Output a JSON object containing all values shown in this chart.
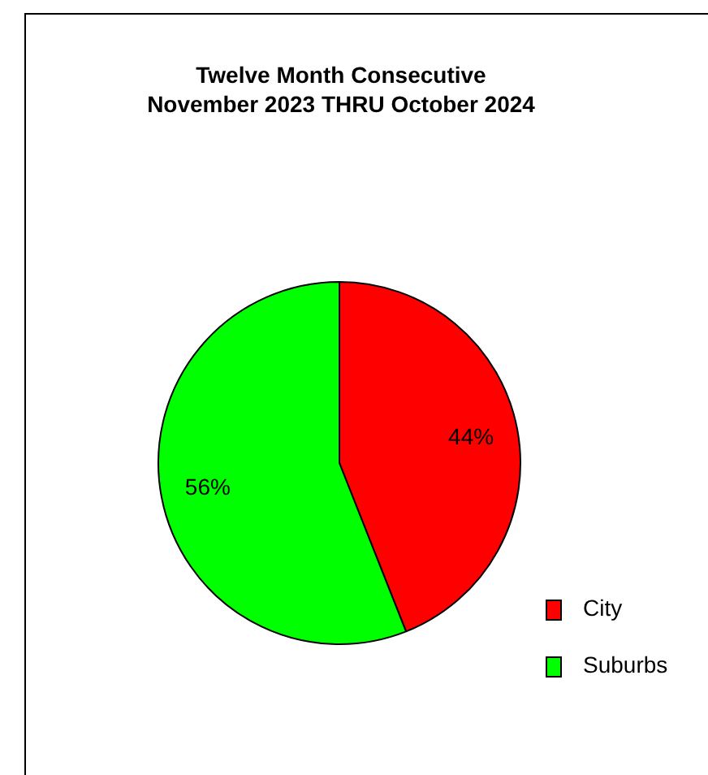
{
  "chart_data": {
    "type": "pie",
    "title": "Twelve Month Consecutive\nNovember 2023 THRU October 2024",
    "categories": [
      "City",
      "Suburbs"
    ],
    "values": [
      44,
      56
    ],
    "colors": [
      "#ff0000",
      "#00ff00"
    ],
    "value_labels": [
      "44%",
      "56%"
    ],
    "legend": "bottom right"
  }
}
